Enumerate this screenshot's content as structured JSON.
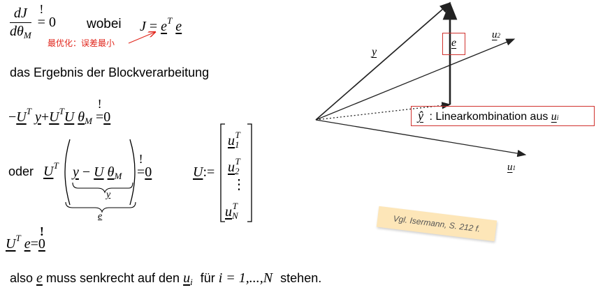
{
  "eq1": {
    "num": "dJ",
    "den": "dθ",
    "den_sub": "M",
    "bang": "!",
    "eq": "=",
    "zero": "0",
    "wobei": "wobei",
    "J": "J",
    "e1": "e",
    "T": "T",
    "e2": "e",
    "note": "最优化：误差最小",
    "note_color": "#e1261c"
  },
  "line2": {
    "text": "das Ergebnis der Blockverarbeitung"
  },
  "eq2": {
    "minus": "−",
    "U1": "U",
    "T1": "T",
    "y1": "y",
    "plus": "+",
    "U2": "U",
    "T2": "T",
    "U3": "U",
    "theta": "θ",
    "M": "M",
    "bang": "!",
    "eq": "=",
    "zero": "0"
  },
  "eq3": {
    "oder": "oder",
    "U1": "U",
    "T1": "T",
    "y": "y",
    "minus": "−",
    "U2": "U",
    "theta": "θ",
    "M": "M",
    "y_under": "y",
    "e_under": "e",
    "bang": "!",
    "eq": "=",
    "zero": "0"
  },
  "matrix": {
    "U": "U",
    "assign": ":=",
    "u1": "u",
    "s1": "1",
    "T1": "T",
    "u2": "u",
    "s2": "2",
    "T2": "T",
    "dots": "⋮",
    "uN": "u",
    "sN": "N",
    "TN": "T"
  },
  "eq4": {
    "U": "U",
    "T": "T",
    "e": "e",
    "eq": "=",
    "zero": "0",
    "bang": "!"
  },
  "final": {
    "also": "also",
    "e": "e",
    "mid": "muss senkrecht auf den",
    "u": "u",
    "i": "i",
    "fuer": "für",
    "range": "i = 1,...,N",
    "end": "stehen."
  },
  "diagram": {
    "y_label": "y",
    "e_label": "e",
    "u2_label": "u",
    "u2_sub": "2",
    "u1_label": "u",
    "u1_sub": "1",
    "yhat": "ŷ",
    "lin_text": ": Linearkombination aus",
    "lin_u": "u",
    "lin_i": "i",
    "box_color": "#d0312d"
  },
  "note_card": {
    "text": "Vgl. Isermann, S. 212 f."
  }
}
